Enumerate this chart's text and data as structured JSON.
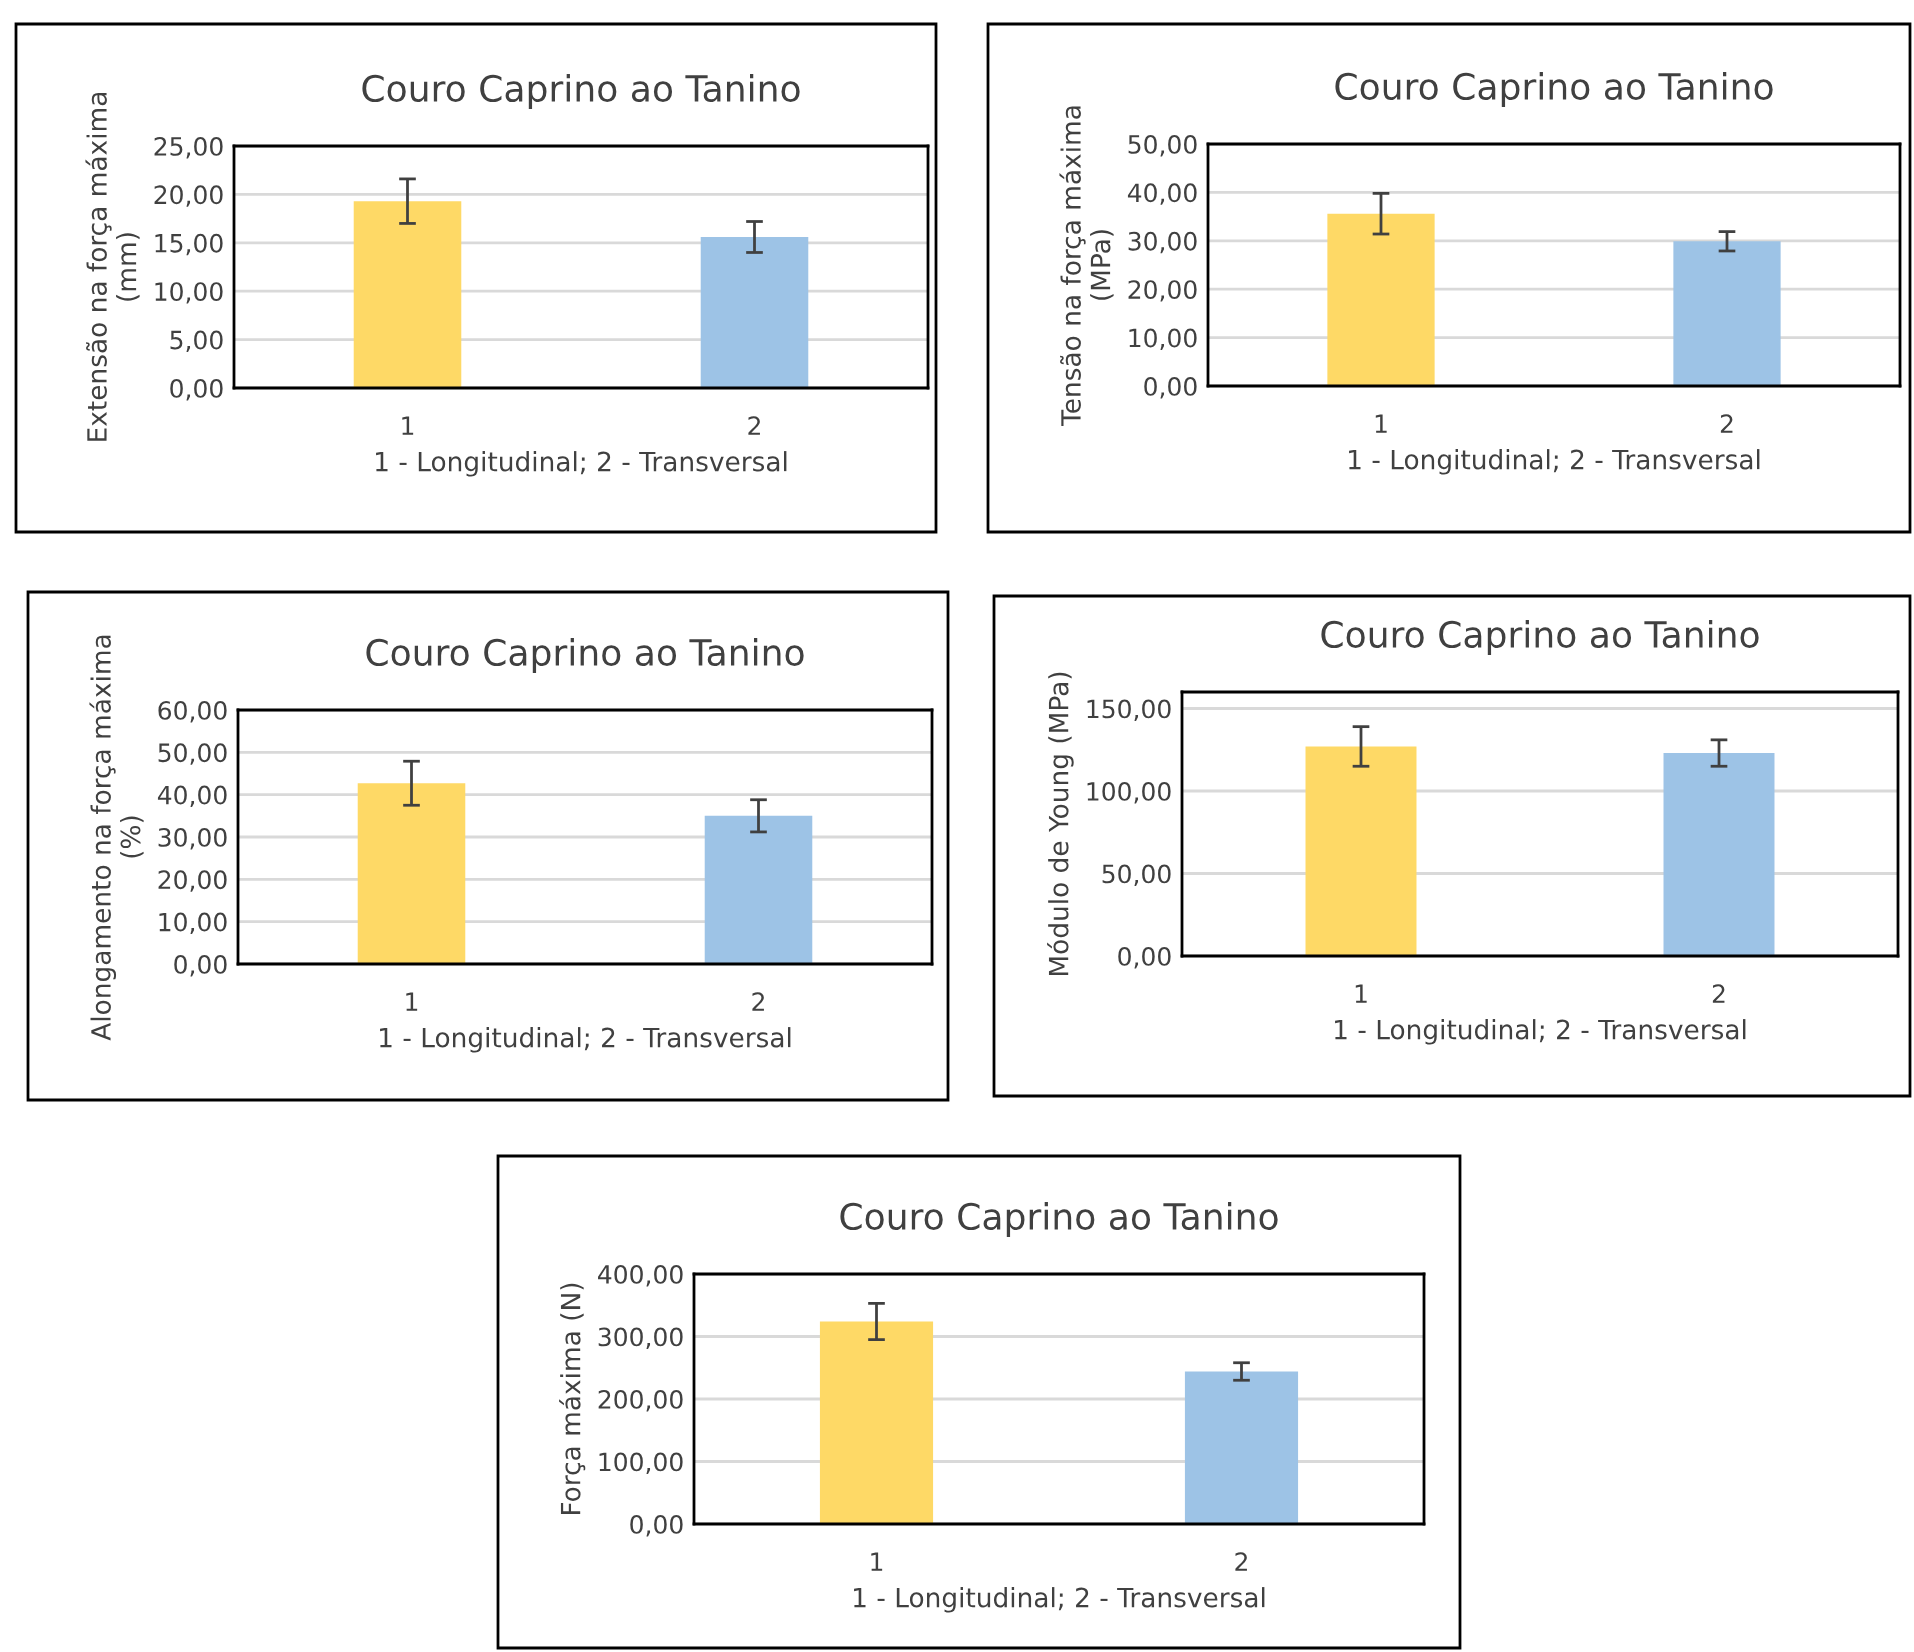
{
  "chart_data": [
    {
      "type": "bar",
      "title": "Couro Caprino ao Tanino",
      "xlabel": "1 - Longitudinal; 2 - Transversal",
      "ylabel": "Extensão na força máxima\n(mm)",
      "categories": [
        "1",
        "2"
      ],
      "values": [
        19.3,
        15.6
      ],
      "errors": [
        2.3,
        1.6
      ],
      "colors": [
        "#fed966",
        "#9dc3e6"
      ],
      "ylim": [
        0,
        25
      ],
      "yticks": [
        {
          "value": 0,
          "label": "0,00"
        },
        {
          "value": 5,
          "label": "5,00"
        },
        {
          "value": 10,
          "label": "10,00"
        },
        {
          "value": 15,
          "label": "15,00"
        },
        {
          "value": 20,
          "label": "20,00"
        },
        {
          "value": 25,
          "label": "25,00"
        }
      ],
      "grid": "y"
    },
    {
      "type": "bar",
      "title": "Couro Caprino ao Tanino",
      "xlabel": "1 - Longitudinal; 2 - Transversal",
      "ylabel": "Tensão na força máxima\n(MPa)",
      "categories": [
        "1",
        "2"
      ],
      "values": [
        35.6,
        29.9
      ],
      "errors": [
        4.2,
        2.0
      ],
      "colors": [
        "#fed966",
        "#9dc3e6"
      ],
      "ylim": [
        0,
        50
      ],
      "yticks": [
        {
          "value": 0,
          "label": "0,00"
        },
        {
          "value": 10,
          "label": "10,00"
        },
        {
          "value": 20,
          "label": "20,00"
        },
        {
          "value": 30,
          "label": "30,00"
        },
        {
          "value": 40,
          "label": "40,00"
        },
        {
          "value": 50,
          "label": "50,00"
        }
      ],
      "grid": "y"
    },
    {
      "type": "bar",
      "title": "Couro Caprino ao Tanino",
      "xlabel": "1 - Longitudinal; 2 - Transversal",
      "ylabel": "Alongamento na força máxima\n(%)",
      "categories": [
        "1",
        "2"
      ],
      "values": [
        42.7,
        35.0
      ],
      "errors": [
        5.2,
        3.8
      ],
      "colors": [
        "#fed966",
        "#9dc3e6"
      ],
      "ylim": [
        0,
        60
      ],
      "yticks": [
        {
          "value": 0,
          "label": "0,00"
        },
        {
          "value": 10,
          "label": "10,00"
        },
        {
          "value": 20,
          "label": "20,00"
        },
        {
          "value": 30,
          "label": "30,00"
        },
        {
          "value": 40,
          "label": "40,00"
        },
        {
          "value": 50,
          "label": "50,00"
        },
        {
          "value": 60,
          "label": "60,00"
        }
      ],
      "grid": "y"
    },
    {
      "type": "bar",
      "title": "Couro Caprino ao Tanino",
      "xlabel": "1 - Longitudinal; 2 - Transversal",
      "ylabel": "Módulo de Young (MPa)",
      "categories": [
        "1",
        "2"
      ],
      "values": [
        127,
        123
      ],
      "errors": [
        12,
        8
      ],
      "colors": [
        "#fed966",
        "#9dc3e6"
      ],
      "ylim": [
        0,
        160
      ],
      "yticks": [
        {
          "value": 0,
          "label": "0,00"
        },
        {
          "value": 50,
          "label": "50,00"
        },
        {
          "value": 100,
          "label": "100,00"
        },
        {
          "value": 150,
          "label": "150,00"
        }
      ],
      "grid": "y"
    },
    {
      "type": "bar",
      "title": "Couro Caprino ao Tanino",
      "xlabel": "1 - Longitudinal; 2 - Transversal",
      "ylabel": "Força máxima (N)",
      "categories": [
        "1",
        "2"
      ],
      "values": [
        324,
        244
      ],
      "errors": [
        29,
        14
      ],
      "colors": [
        "#fed966",
        "#9dc3e6"
      ],
      "ylim": [
        0,
        400
      ],
      "yticks": [
        {
          "value": 0,
          "label": "0,00"
        },
        {
          "value": 100,
          "label": "100,00"
        },
        {
          "value": 200,
          "label": "200,00"
        },
        {
          "value": 300,
          "label": "300,00"
        },
        {
          "value": 400,
          "label": "400,00"
        }
      ],
      "grid": "y"
    }
  ]
}
